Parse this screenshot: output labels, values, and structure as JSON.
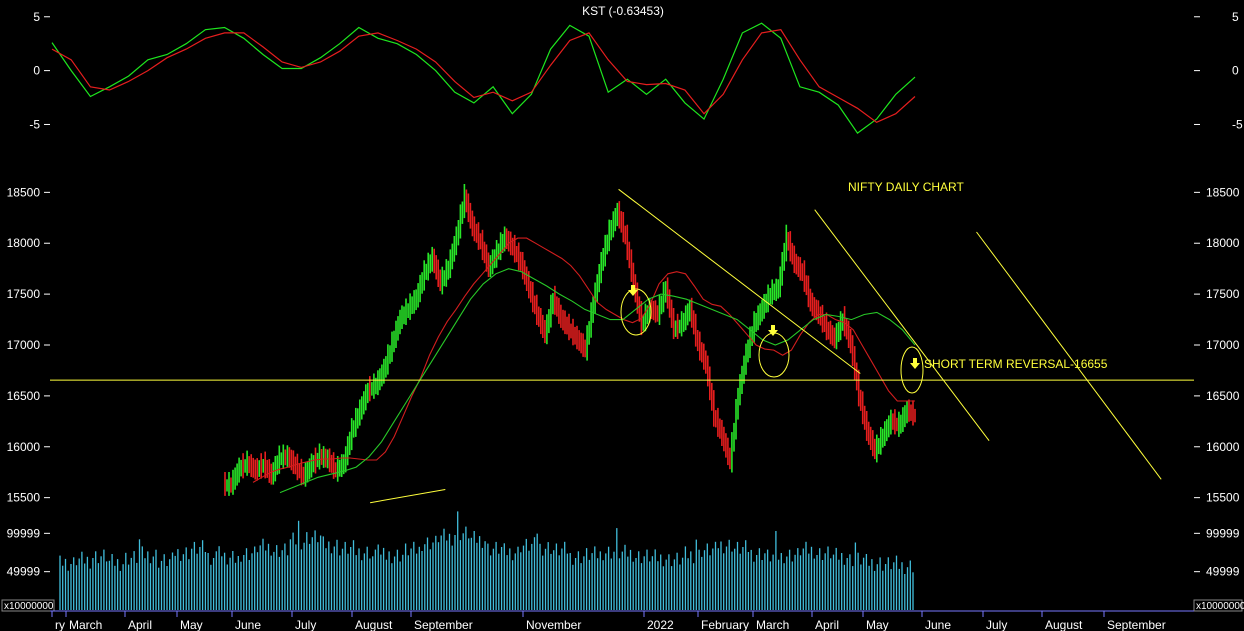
{
  "colors": {
    "background": "#000000",
    "axis_text": "#ffffff",
    "kst_line": "#1ee61e",
    "kst_signal": "#e61e1e",
    "bar_up": "#28e628",
    "bar_down": "#e61e1e",
    "ema_short": "#d21e1e",
    "ema_long": "#28c828",
    "trendline": "#ffff3c",
    "volume": "#41bedc",
    "axis_line": "#7878ff"
  },
  "panels": {
    "kst": {
      "title": "KST (-0.63453)",
      "ticks": [
        "5",
        "0",
        "-5"
      ]
    },
    "price": {
      "annotation_title": "NIFTY DAILY CHART",
      "reversal_label": "SHORT TERM REVERSAL-16655",
      "ticks": [
        "18500",
        "18000",
        "17500",
        "17000",
        "16500",
        "16000",
        "15500"
      ]
    },
    "volume": {
      "ticks": [
        "99999",
        "49999"
      ],
      "scale_label": "x10000000"
    }
  },
  "months": [
    "ry",
    "March",
    "April",
    "May",
    "June",
    "July",
    "August",
    "September",
    "November",
    "2022",
    "February",
    "March",
    "April",
    "May",
    "June",
    "July",
    "August",
    "September"
  ],
  "chart_data": [
    {
      "type": "line",
      "title": "KST (-0.63453)",
      "ylim": [
        -7,
        6
      ],
      "series": [
        {
          "name": "KST",
          "values": [
            2.6,
            0.0,
            -2.4,
            -1.5,
            -0.5,
            1.0,
            1.5,
            2.5,
            3.8,
            4.0,
            3.0,
            1.5,
            0.2,
            0.2,
            1.2,
            2.5,
            4.0,
            3.0,
            2.5,
            1.5,
            0.0,
            -2.0,
            -3.0,
            -1.5,
            -4.0,
            -2.2,
            2.0,
            4.2,
            3.2,
            -2.0,
            -0.8,
            -2.2,
            -0.8,
            -3.0,
            -4.5,
            -0.8,
            3.5,
            4.4,
            3.0,
            -1.5,
            -2.0,
            -3.2,
            -5.8,
            -4.5,
            -2.2,
            -0.6
          ]
        },
        {
          "name": "Signal",
          "values": [
            2.0,
            1.0,
            -1.5,
            -1.8,
            -1.0,
            0.0,
            1.2,
            2.0,
            3.0,
            3.5,
            3.5,
            2.2,
            0.8,
            0.3,
            0.8,
            1.8,
            3.2,
            3.5,
            2.8,
            2.0,
            0.8,
            -1.0,
            -2.5,
            -2.0,
            -2.8,
            -2.0,
            0.5,
            2.8,
            3.5,
            1.0,
            -1.0,
            -1.3,
            -1.2,
            -1.8,
            -4.0,
            -2.2,
            1.0,
            3.5,
            3.8,
            1.0,
            -1.5,
            -2.5,
            -3.5,
            -4.8,
            -4.0,
            -2.4
          ]
        }
      ]
    },
    {
      "type": "bar",
      "title": "NIFTY DAILY CHART",
      "ylim": [
        15300,
        18700
      ],
      "series": [
        {
          "name": "Close",
          "values": [
            15620,
            15780,
            15830,
            15760,
            15820,
            15710,
            15880,
            15900,
            15800,
            15700,
            15820,
            15900,
            15870,
            15760,
            15830,
            16150,
            16350,
            16550,
            16600,
            16750,
            17000,
            17250,
            17350,
            17450,
            17700,
            17850,
            17600,
            17750,
            18050,
            18450,
            18150,
            18000,
            17750,
            17900,
            18050,
            17950,
            17800,
            17550,
            17300,
            17100,
            17450,
            17250,
            17150,
            17050,
            16950,
            17400,
            17800,
            18100,
            18300,
            18050,
            17600,
            17200,
            17350,
            17300,
            17550,
            17150,
            17200,
            17350,
            17000,
            16800,
            16300,
            16100,
            15850,
            16500,
            16900,
            17200,
            17350,
            17500,
            17550,
            18050,
            17800,
            17700,
            17400,
            17300,
            17150,
            17050,
            17250,
            17000,
            16500,
            16150,
            15950,
            16100,
            16250,
            16200,
            16350,
            16300
          ]
        },
        {
          "name": "EMA 20",
          "values": [
            15650,
            15700,
            15750,
            15780,
            15800,
            15830,
            15850,
            15870,
            15880,
            15880,
            15890,
            15890,
            15880,
            15870,
            15870,
            15950,
            16100,
            16300,
            16500,
            16680,
            16900,
            17080,
            17230,
            17350,
            17480,
            17600,
            17700,
            17800,
            17900,
            18000,
            18050,
            18050,
            18000,
            17950,
            17900,
            17850,
            17780,
            17680,
            17550,
            17420,
            17350,
            17300,
            17250,
            17220,
            17260,
            17400,
            17600,
            17700,
            17720,
            17700,
            17580,
            17450,
            17400,
            17380,
            17300,
            17200,
            17100,
            17000,
            16960,
            16950,
            16900,
            16950,
            17100,
            17220,
            17300,
            17300,
            17250,
            17220,
            17150,
            17000,
            16850,
            16700,
            16550,
            16450,
            16450,
            16450
          ]
        },
        {
          "name": "EMA 50",
          "values": [
            15550,
            15600,
            15650,
            15700,
            15730,
            15760,
            15800,
            15900,
            16050,
            16250,
            16450,
            16650,
            16850,
            17050,
            17250,
            17450,
            17600,
            17700,
            17750,
            17720,
            17650,
            17580,
            17500,
            17430,
            17350,
            17300,
            17250,
            17250,
            17350,
            17450,
            17500,
            17480,
            17450,
            17400,
            17350,
            17300,
            17250,
            17150,
            17050,
            17000,
            17050,
            17150,
            17250,
            17300,
            17280,
            17250,
            17300,
            17320,
            17250,
            17150,
            17000
          ]
        }
      ]
    },
    {
      "type": "bar",
      "title": "",
      "ylabel": "",
      "ylim": [
        0,
        120000
      ],
      "series": [
        {
          "name": "Volume",
          "values": [
            60000,
            65000,
            70000,
            62000,
            68000,
            72000,
            64000,
            75000,
            80000,
            70000,
            66000,
            74000,
            82000,
            78000,
            90000,
            95000,
            85000,
            80000,
            76000,
            70000,
            72000,
            78000,
            88000,
            95000,
            100000,
            92000,
            80000,
            76000,
            84000,
            82000,
            78000,
            70000,
            72000,
            76000,
            74000,
            70000,
            68000,
            66000,
            72000,
            78000,
            85000,
            80000,
            74000,
            70000,
            72000,
            78000,
            74000,
            70000,
            66000,
            62000,
            60000,
            58000
          ]
        }
      ]
    }
  ],
  "annotations": {
    "reversal_level": 16655,
    "trendlines": [
      {
        "from": [
          0.497,
          18530
        ],
        "to": [
          0.709,
          16720
        ]
      },
      {
        "from": [
          0.669,
          18330
        ],
        "to": [
          0.822,
          16060
        ]
      },
      {
        "from": [
          0.811,
          18110
        ],
        "to": [
          0.973,
          15680
        ]
      },
      {
        "from": [
          0.279,
          15450
        ],
        "to": [
          0.345,
          15580
        ]
      }
    ]
  }
}
